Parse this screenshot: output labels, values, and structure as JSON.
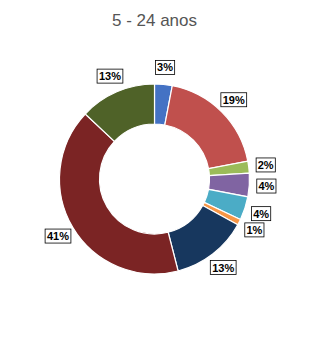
{
  "chart_data": {
    "type": "pie",
    "title": "5 - 24 anos",
    "values": [
      3,
      19,
      2,
      4,
      4,
      1,
      13,
      41,
      13
    ],
    "value_labels": [
      "3%",
      "19%",
      "2%",
      "4%",
      "4%",
      "1%",
      "13%",
      "41%",
      "13%"
    ],
    "colors": [
      "#4472C4",
      "#C0504D",
      "#9BBB59",
      "#8064A2",
      "#4BACC6",
      "#F79646",
      "#17375E",
      "#7B2424",
      "#4F6228"
    ],
    "data_labels": true
  }
}
